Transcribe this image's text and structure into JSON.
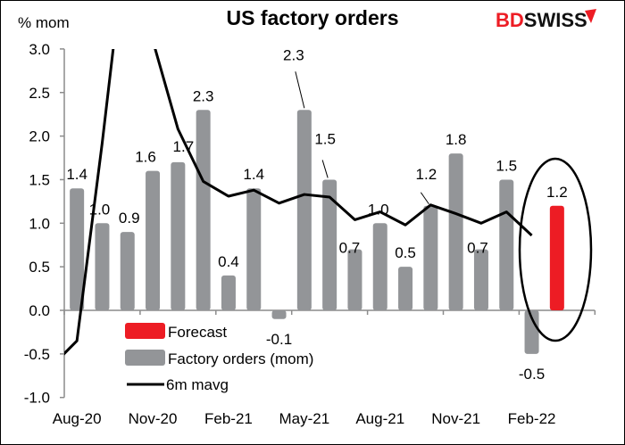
{
  "chart_data": {
    "type": "bar",
    "title": "US factory orders",
    "ylabel": "% mom",
    "ylim": [
      -1.0,
      3.0
    ],
    "yticks": [
      "-1.0",
      "-0.5",
      "0.0",
      "0.5",
      "1.0",
      "1.5",
      "2.0",
      "2.5",
      "3.0"
    ],
    "grid": false,
    "categories": [
      "Aug-20",
      "Sep-20",
      "Oct-20",
      "Nov-20",
      "Dec-20",
      "Jan-21",
      "Feb-21",
      "Mar-21",
      "Apr-21",
      "May-21",
      "Jun-21",
      "Jul-21",
      "Aug-21",
      "Sep-21",
      "Oct-21",
      "Nov-21",
      "Dec-21",
      "Jan-22",
      "Feb-22",
      "Mar-22"
    ],
    "xtick_labels": [
      "Aug-20",
      "Nov-20",
      "Feb-21",
      "May-21",
      "Aug-21",
      "Nov-21",
      "Feb-22"
    ],
    "series": [
      {
        "name": "Factory orders (mom)",
        "type": "bar",
        "color": "#939598",
        "values": [
          1.4,
          1.0,
          0.9,
          1.6,
          1.7,
          2.3,
          0.4,
          1.4,
          -0.1,
          2.3,
          1.5,
          0.7,
          1.0,
          0.5,
          1.2,
          1.8,
          0.7,
          1.5,
          -0.5,
          null
        ]
      },
      {
        "name": "Forecast",
        "type": "bar",
        "color": "#ED1C24",
        "values": [
          null,
          null,
          null,
          null,
          null,
          null,
          null,
          null,
          null,
          null,
          null,
          null,
          null,
          null,
          null,
          null,
          null,
          null,
          null,
          1.2
        ]
      },
      {
        "name": "6m mavg",
        "type": "line",
        "color": "#000000",
        "values": [
          -0.35,
          1.92,
          4.4,
          3.1,
          2.08,
          1.48,
          1.31,
          1.38,
          1.23,
          1.33,
          1.3,
          1.04,
          1.13,
          0.98,
          1.21,
          1.11,
          1.0,
          1.13,
          0.86,
          null
        ]
      }
    ],
    "data_labels": [
      "1.4",
      "1.0",
      "0.9",
      "1.6",
      "1.7",
      "2.3",
      "0.4",
      "1.4",
      "-0.1",
      "2.3",
      "1.5",
      "0.7",
      "1.0",
      "0.5",
      "1.2",
      "1.8",
      "0.7",
      "1.5",
      "-0.5",
      "1.2"
    ],
    "legend": "inside-bottom-left",
    "annotation": "ellipse around forecast"
  },
  "logo": {
    "text_red": "BD",
    "text_black": "SWISS",
    "color": "#ED1C24"
  }
}
